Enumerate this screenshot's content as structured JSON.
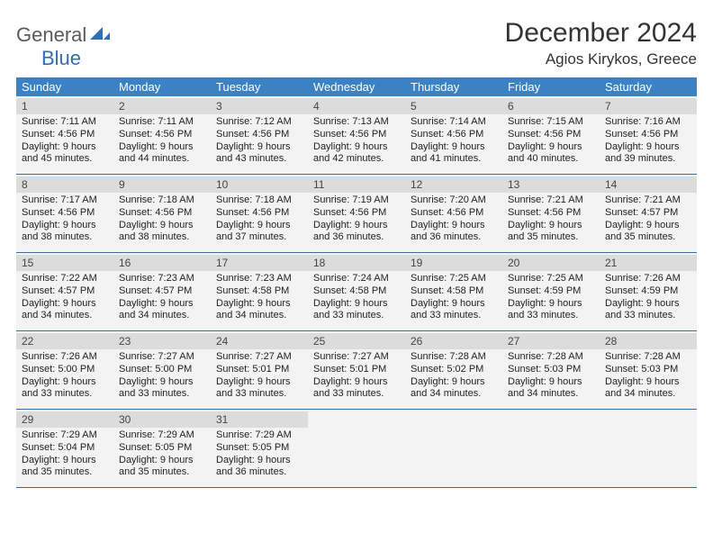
{
  "logo": {
    "word1": "General",
    "word2": "Blue"
  },
  "title": "December 2024",
  "location": "Agios Kirykos, Greece",
  "colors": {
    "header_bg": "#3b82c4",
    "header_text": "#ffffff",
    "week_border": "#3b6ea0",
    "daynum_bg": "#dcdcdc",
    "cell_bg": "#f3f3f3",
    "logo_gray": "#5a5a5a",
    "logo_blue": "#2f6fb4"
  },
  "weekdays": [
    "Sunday",
    "Monday",
    "Tuesday",
    "Wednesday",
    "Thursday",
    "Friday",
    "Saturday"
  ],
  "days": [
    {
      "n": "1",
      "sr": "7:11 AM",
      "ss": "4:56 PM",
      "d1": "9 hours",
      "d2": "and 45 minutes."
    },
    {
      "n": "2",
      "sr": "7:11 AM",
      "ss": "4:56 PM",
      "d1": "9 hours",
      "d2": "and 44 minutes."
    },
    {
      "n": "3",
      "sr": "7:12 AM",
      "ss": "4:56 PM",
      "d1": "9 hours",
      "d2": "and 43 minutes."
    },
    {
      "n": "4",
      "sr": "7:13 AM",
      "ss": "4:56 PM",
      "d1": "9 hours",
      "d2": "and 42 minutes."
    },
    {
      "n": "5",
      "sr": "7:14 AM",
      "ss": "4:56 PM",
      "d1": "9 hours",
      "d2": "and 41 minutes."
    },
    {
      "n": "6",
      "sr": "7:15 AM",
      "ss": "4:56 PM",
      "d1": "9 hours",
      "d2": "and 40 minutes."
    },
    {
      "n": "7",
      "sr": "7:16 AM",
      "ss": "4:56 PM",
      "d1": "9 hours",
      "d2": "and 39 minutes."
    },
    {
      "n": "8",
      "sr": "7:17 AM",
      "ss": "4:56 PM",
      "d1": "9 hours",
      "d2": "and 38 minutes."
    },
    {
      "n": "9",
      "sr": "7:18 AM",
      "ss": "4:56 PM",
      "d1": "9 hours",
      "d2": "and 38 minutes."
    },
    {
      "n": "10",
      "sr": "7:18 AM",
      "ss": "4:56 PM",
      "d1": "9 hours",
      "d2": "and 37 minutes."
    },
    {
      "n": "11",
      "sr": "7:19 AM",
      "ss": "4:56 PM",
      "d1": "9 hours",
      "d2": "and 36 minutes."
    },
    {
      "n": "12",
      "sr": "7:20 AM",
      "ss": "4:56 PM",
      "d1": "9 hours",
      "d2": "and 36 minutes."
    },
    {
      "n": "13",
      "sr": "7:21 AM",
      "ss": "4:56 PM",
      "d1": "9 hours",
      "d2": "and 35 minutes."
    },
    {
      "n": "14",
      "sr": "7:21 AM",
      "ss": "4:57 PM",
      "d1": "9 hours",
      "d2": "and 35 minutes."
    },
    {
      "n": "15",
      "sr": "7:22 AM",
      "ss": "4:57 PM",
      "d1": "9 hours",
      "d2": "and 34 minutes."
    },
    {
      "n": "16",
      "sr": "7:23 AM",
      "ss": "4:57 PM",
      "d1": "9 hours",
      "d2": "and 34 minutes."
    },
    {
      "n": "17",
      "sr": "7:23 AM",
      "ss": "4:58 PM",
      "d1": "9 hours",
      "d2": "and 34 minutes."
    },
    {
      "n": "18",
      "sr": "7:24 AM",
      "ss": "4:58 PM",
      "d1": "9 hours",
      "d2": "and 33 minutes."
    },
    {
      "n": "19",
      "sr": "7:25 AM",
      "ss": "4:58 PM",
      "d1": "9 hours",
      "d2": "and 33 minutes."
    },
    {
      "n": "20",
      "sr": "7:25 AM",
      "ss": "4:59 PM",
      "d1": "9 hours",
      "d2": "and 33 minutes."
    },
    {
      "n": "21",
      "sr": "7:26 AM",
      "ss": "4:59 PM",
      "d1": "9 hours",
      "d2": "and 33 minutes."
    },
    {
      "n": "22",
      "sr": "7:26 AM",
      "ss": "5:00 PM",
      "d1": "9 hours",
      "d2": "and 33 minutes."
    },
    {
      "n": "23",
      "sr": "7:27 AM",
      "ss": "5:00 PM",
      "d1": "9 hours",
      "d2": "and 33 minutes."
    },
    {
      "n": "24",
      "sr": "7:27 AM",
      "ss": "5:01 PM",
      "d1": "9 hours",
      "d2": "and 33 minutes."
    },
    {
      "n": "25",
      "sr": "7:27 AM",
      "ss": "5:01 PM",
      "d1": "9 hours",
      "d2": "and 33 minutes."
    },
    {
      "n": "26",
      "sr": "7:28 AM",
      "ss": "5:02 PM",
      "d1": "9 hours",
      "d2": "and 34 minutes."
    },
    {
      "n": "27",
      "sr": "7:28 AM",
      "ss": "5:03 PM",
      "d1": "9 hours",
      "d2": "and 34 minutes."
    },
    {
      "n": "28",
      "sr": "7:28 AM",
      "ss": "5:03 PM",
      "d1": "9 hours",
      "d2": "and 34 minutes."
    },
    {
      "n": "29",
      "sr": "7:29 AM",
      "ss": "5:04 PM",
      "d1": "9 hours",
      "d2": "and 35 minutes."
    },
    {
      "n": "30",
      "sr": "7:29 AM",
      "ss": "5:05 PM",
      "d1": "9 hours",
      "d2": "and 35 minutes."
    },
    {
      "n": "31",
      "sr": "7:29 AM",
      "ss": "5:05 PM",
      "d1": "9 hours",
      "d2": "and 36 minutes."
    }
  ],
  "labels": {
    "sunrise": "Sunrise:",
    "sunset": "Sunset:",
    "daylight": "Daylight:"
  }
}
